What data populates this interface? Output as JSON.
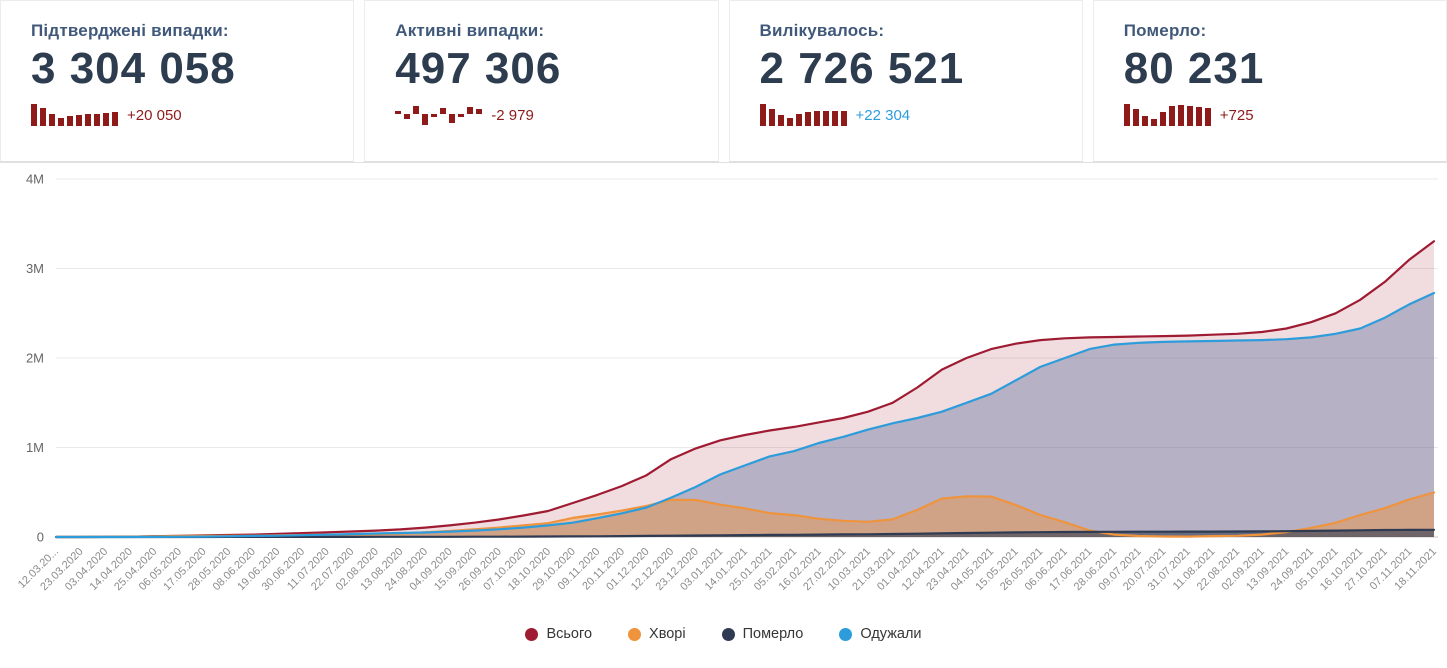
{
  "cards": [
    {
      "label": "Підтверджені випадки:",
      "value": "3 304 058",
      "delta": "+20 050",
      "delta_color": "#8e1b1b",
      "spark_color": "#8f1a1a",
      "spark_mode": "baseline",
      "sparkline": [
        100,
        80,
        55,
        35,
        45,
        50,
        55,
        55,
        60,
        65
      ]
    },
    {
      "label": "Активні випадки:",
      "value": "497 306",
      "delta": "-2 979",
      "delta_color": "#8e1b1b",
      "spark_color": "#8f1a1a",
      "spark_mode": "centered",
      "sparkline": [
        12,
        -18,
        30,
        -40,
        -10,
        22,
        -34,
        -12,
        26,
        18
      ]
    },
    {
      "label": "Вилікувалось:",
      "value": "2 726 521",
      "delta": "+22 304",
      "delta_color": "#2d9cdb",
      "spark_color": "#8f1a1a",
      "spark_mode": "baseline",
      "sparkline": [
        100,
        78,
        52,
        38,
        56,
        62,
        66,
        66,
        70,
        70
      ]
    },
    {
      "label": "Померло:",
      "value": "80 231",
      "delta": "+725",
      "delta_color": "#8e1b1b",
      "spark_color": "#8f1a1a",
      "spark_mode": "baseline",
      "sparkline": [
        95,
        75,
        45,
        32,
        62,
        85,
        90,
        88,
        82,
        78
      ]
    }
  ],
  "chart_data": {
    "type": "area",
    "title": "",
    "xlabel": "",
    "ylabel": "",
    "ylim": [
      0,
      4000000
    ],
    "yticks": [
      "0",
      "1M",
      "2M",
      "3M",
      "4M"
    ],
    "grid": "horizontal",
    "legend_position": "bottom",
    "x": [
      "12.03.20...",
      "23.03.2020",
      "03.04.2020",
      "14.04.2020",
      "25.04.2020",
      "06.05.2020",
      "17.05.2020",
      "28.05.2020",
      "08.06.2020",
      "19.06.2020",
      "30.06.2020",
      "11.07.2020",
      "22.07.2020",
      "02.08.2020",
      "13.08.2020",
      "24.08.2020",
      "04.09.2020",
      "15.09.2020",
      "26.09.2020",
      "07.10.2020",
      "18.10.2020",
      "29.10.2020",
      "09.11.2020",
      "20.11.2020",
      "01.12.2020",
      "12.12.2020",
      "23.12.2020",
      "03.01.2021",
      "14.01.2021",
      "25.01.2021",
      "05.02.2021",
      "16.02.2021",
      "27.02.2021",
      "10.03.2021",
      "21.03.2021",
      "01.04.2021",
      "12.04.2021",
      "23.04.2021",
      "04.05.2021",
      "15.05.2021",
      "26.05.2021",
      "06.06.2021",
      "17.06.2021",
      "28.06.2021",
      "09.07.2021",
      "20.07.2021",
      "31.07.2021",
      "11.08.2021",
      "22.08.2021",
      "02.09.2021",
      "13.09.2021",
      "24.09.2021",
      "05.10.2021",
      "16.10.2021",
      "27.10.2021",
      "07.11.2021",
      "18.11.2021"
    ],
    "series": [
      {
        "name": "Всього",
        "color": "#9e1b32",
        "fill": "rgba(158,27,50,0.15)",
        "values": [
          3,
          100,
          1000,
          3400,
          9000,
          13000,
          18000,
          22000,
          27000,
          35000,
          44000,
          53000,
          61000,
          72000,
          85000,
          105000,
          130000,
          160000,
          195000,
          240000,
          290000,
          380000,
          470000,
          570000,
          690000,
          870000,
          990000,
          1080000,
          1140000,
          1190000,
          1230000,
          1280000,
          1330000,
          1400000,
          1500000,
          1670000,
          1870000,
          2000000,
          2100000,
          2160000,
          2200000,
          2220000,
          2230000,
          2235000,
          2240000,
          2245000,
          2250000,
          2260000,
          2270000,
          2290000,
          2330000,
          2400000,
          2500000,
          2650000,
          2850000,
          3100000,
          3304058
        ]
      },
      {
        "name": "Хворі",
        "color": "#ef933d",
        "fill": "rgba(240,147,62,0.45)",
        "values": [
          3,
          98,
          955,
          3200,
          8180,
          10660,
          12500,
          13350,
          14200,
          19050,
          22900,
          25700,
          27500,
          31300,
          38050,
          52750,
          67300,
          84800,
          105100,
          130300,
          154500,
          213200,
          251800,
          295000,
          348000,
          415500,
          413000,
          361000,
          319000,
          267000,
          245000,
          203000,
          181500,
          169500,
          197000,
          303000,
          429000,
          455000,
          451500,
          358500,
          246000,
          164000,
          72500,
          26500,
          11000,
          5500,
          5000,
          9500,
          13500,
          27000,
          55000,
          102000,
          159000,
          245500,
          322000,
          420500,
          497306
        ]
      },
      {
        "name": "Померло",
        "color": "#2f3b52",
        "fill": "rgba(47,59,82,0.6)",
        "values": [
          0,
          1,
          25,
          100,
          220,
          340,
          500,
          650,
          800,
          950,
          1100,
          1300,
          1500,
          1700,
          1950,
          2250,
          2700,
          3200,
          3900,
          4700,
          5500,
          6800,
          8200,
          10000,
          12000,
          14500,
          17000,
          19000,
          21000,
          23000,
          25000,
          27000,
          28500,
          30500,
          33000,
          37000,
          41000,
          45000,
          48500,
          51500,
          54000,
          56000,
          57500,
          58500,
          59000,
          59500,
          60000,
          60500,
          61500,
          63000,
          65000,
          68000,
          71000,
          74500,
          78000,
          79500,
          80231
        ]
      },
      {
        "name": "Одужали",
        "color": "#2d9cdb",
        "fill": "rgba(88,104,150,0.38)",
        "values": [
          0,
          1,
          20,
          100,
          600,
          2000,
          5000,
          8000,
          12000,
          15000,
          20000,
          26000,
          32000,
          39000,
          45000,
          50000,
          60000,
          72000,
          86000,
          105000,
          130000,
          160000,
          210000,
          265000,
          330000,
          440000,
          560000,
          700000,
          800000,
          900000,
          960000,
          1050000,
          1120000,
          1200000,
          1270000,
          1330000,
          1400000,
          1500000,
          1600000,
          1750000,
          1900000,
          2000000,
          2100000,
          2150000,
          2170000,
          2180000,
          2185000,
          2190000,
          2195000,
          2200000,
          2210000,
          2230000,
          2270000,
          2330000,
          2450000,
          2600000,
          2726521
        ]
      }
    ]
  }
}
